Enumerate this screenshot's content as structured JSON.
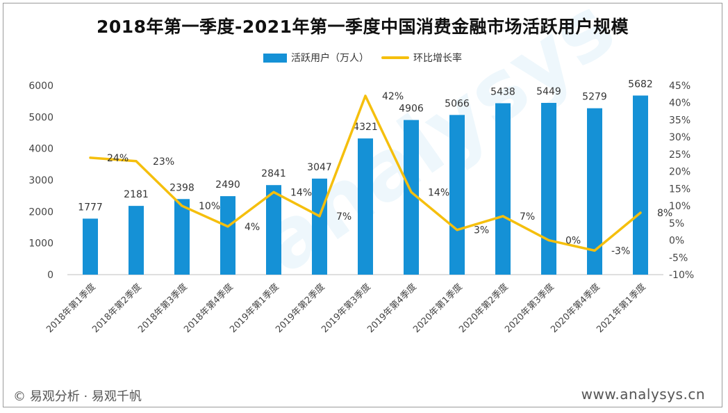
{
  "title": "2018年第一季度-2021年第一季度中国消费金融市场活跃用户规模",
  "legend": {
    "bar_label": "活跃用户（万人）",
    "line_label": "环比增长率"
  },
  "footer": {
    "left": "© 易观分析 · 易观千帆",
    "right": "www.analysys.cn"
  },
  "watermark": "analysys",
  "colors": {
    "bar": "#1591d6",
    "line": "#f5bf0d"
  },
  "chart_data": {
    "type": "bar",
    "categories": [
      "2018年第1季度",
      "2018年第2季度",
      "2018年第3季度",
      "2018年第4季度",
      "2019年第1季度",
      "2019年第2季度",
      "2019年第3季度",
      "2019年第4季度",
      "2020年第1季度",
      "2020年第2季度",
      "2020年第3季度",
      "2020年第4季度",
      "2021年第1季度"
    ],
    "series": [
      {
        "name": "活跃用户（万人）",
        "type": "bar",
        "axis": "left",
        "values": [
          1777,
          2181,
          2398,
          2490,
          2841,
          3047,
          4321,
          4906,
          5066,
          5438,
          5449,
          5279,
          5682
        ]
      },
      {
        "name": "环比增长率",
        "type": "line",
        "axis": "right",
        "values": [
          24,
          23,
          10,
          4,
          14,
          7,
          42,
          14,
          3,
          7,
          0,
          -3,
          8
        ],
        "labels": [
          "24%",
          "23%",
          "10%",
          "4%",
          "14%",
          "7%",
          "42%",
          "14%",
          "3%",
          "7%",
          "0%",
          "-3%",
          "8%"
        ]
      }
    ],
    "ylim_left": [
      0,
      6000
    ],
    "left_ticks": [
      "0",
      "1000",
      "2000",
      "3000",
      "4000",
      "5000",
      "6000"
    ],
    "ylim_right": [
      -10,
      45
    ],
    "right_ticks": [
      "-10%",
      "-5%",
      "0%",
      "5%",
      "10%",
      "15%",
      "20%",
      "25%",
      "30%",
      "35%",
      "40%",
      "45%"
    ],
    "grid": false,
    "legend_position": "top"
  }
}
